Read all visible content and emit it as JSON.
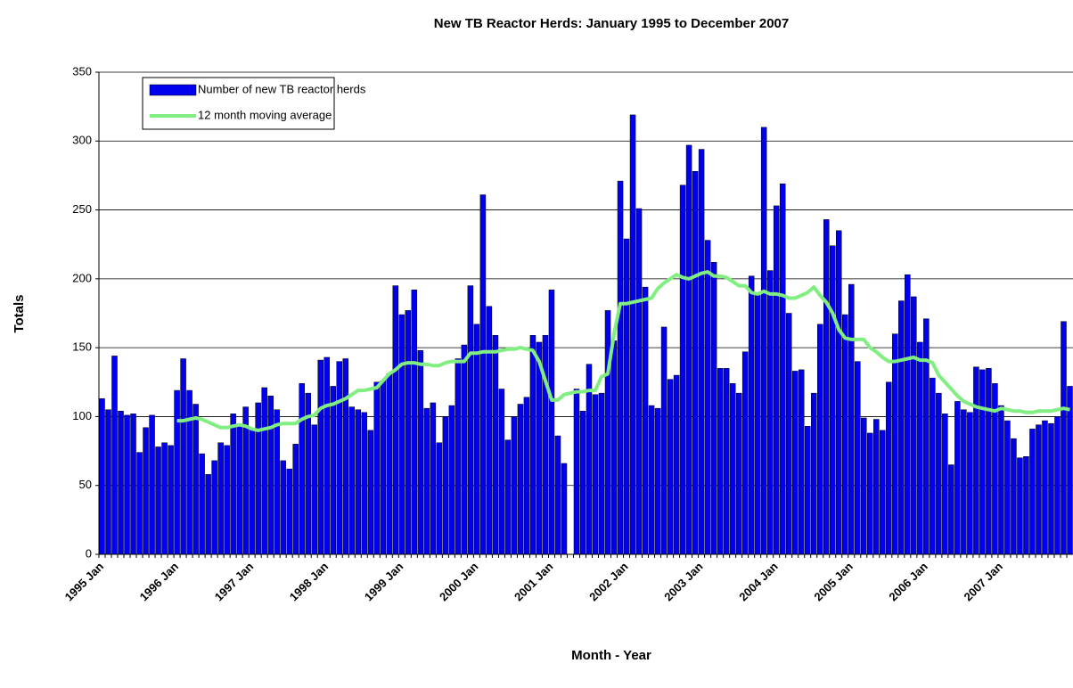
{
  "chart_data": {
    "type": "bar",
    "title": "New TB Reactor Herds: January 1995 to December 2007",
    "x_label": "Month - Year",
    "y_label": "Totals",
    "categories": [
      "1995 Jan",
      null,
      null,
      null,
      null,
      null,
      null,
      null,
      null,
      null,
      null,
      null,
      "1996 Jan",
      null,
      null,
      null,
      null,
      null,
      null,
      null,
      null,
      null,
      null,
      null,
      "1997 Jan",
      null,
      null,
      null,
      null,
      null,
      null,
      null,
      null,
      null,
      null,
      null,
      "1998 Jan",
      null,
      null,
      null,
      null,
      null,
      null,
      null,
      null,
      null,
      null,
      null,
      "1999 Jan",
      null,
      null,
      null,
      null,
      null,
      null,
      null,
      null,
      null,
      null,
      null,
      "2000 Jan",
      null,
      null,
      null,
      null,
      null,
      null,
      null,
      null,
      null,
      null,
      null,
      "2001 Jan",
      null,
      null,
      null,
      null,
      null,
      null,
      null,
      null,
      null,
      null,
      null,
      "2002 Jan",
      null,
      null,
      null,
      null,
      null,
      null,
      null,
      null,
      null,
      null,
      null,
      "2003 Jan",
      null,
      null,
      null,
      null,
      null,
      null,
      null,
      null,
      null,
      null,
      null,
      "2004 Jan",
      null,
      null,
      null,
      null,
      null,
      null,
      null,
      null,
      null,
      null,
      null,
      "2005 Jan",
      null,
      null,
      null,
      null,
      null,
      null,
      null,
      null,
      null,
      null,
      null,
      "2006 Jan",
      null,
      null,
      null,
      null,
      null,
      null,
      null,
      null,
      null,
      null,
      null,
      "2007 Jan",
      null,
      null,
      null,
      null,
      null,
      null,
      null,
      null,
      null,
      null,
      null
    ],
    "series": [
      {
        "name": "Number of new TB reactor herds",
        "type": "bar",
        "color": "#0000ee",
        "values": [
          113,
          105,
          144,
          104,
          101,
          102,
          74,
          92,
          101,
          78,
          81,
          79,
          119,
          142,
          119,
          109,
          73,
          58,
          68,
          81,
          79,
          102,
          93,
          107,
          91,
          110,
          121,
          115,
          105,
          68,
          62,
          80,
          124,
          117,
          94,
          141,
          143,
          122,
          140,
          142,
          107,
          105,
          103,
          90,
          125,
          126,
          131,
          195,
          174,
          177,
          192,
          148,
          106,
          110,
          81,
          100,
          108,
          142,
          152,
          195,
          167,
          261,
          180,
          159,
          120,
          83,
          100,
          109,
          114,
          159,
          154,
          159,
          192,
          86,
          66,
          null,
          120,
          104,
          138,
          116,
          117,
          177,
          155,
          271,
          229,
          319,
          251,
          194,
          108,
          106,
          165,
          127,
          130,
          268,
          297,
          278,
          294,
          228,
          212,
          135,
          135,
          124,
          117,
          147,
          202,
          188,
          310,
          206,
          253,
          269,
          175,
          133,
          134,
          93,
          117,
          167,
          243,
          224,
          235,
          174,
          196,
          140,
          99,
          88,
          98,
          90,
          125,
          160,
          184,
          203,
          187,
          154,
          171,
          128,
          117,
          102,
          65,
          111,
          105,
          103,
          136,
          134,
          135,
          124,
          108,
          97,
          84,
          70,
          71,
          91,
          94,
          97,
          95,
          100,
          169,
          122
        ]
      },
      {
        "name": "12 month moving average",
        "type": "line",
        "color": "#80ee80",
        "values": [
          null,
          null,
          null,
          null,
          null,
          null,
          null,
          null,
          null,
          null,
          null,
          null,
          97,
          97,
          98,
          99,
          98,
          96,
          94,
          92,
          92,
          93,
          94,
          93,
          91,
          90,
          91,
          92,
          94,
          95,
          95,
          95,
          98,
          100,
          101,
          106,
          108,
          109,
          111,
          113,
          116,
          119,
          119,
          120,
          121,
          126,
          131,
          134,
          138,
          139,
          139,
          138,
          138,
          137,
          137,
          139,
          140,
          140,
          140,
          146,
          146,
          147,
          147,
          147,
          148,
          149,
          149,
          150,
          149,
          148,
          140,
          126,
          112,
          112,
          116,
          117,
          118,
          118,
          119,
          119,
          129,
          131,
          160,
          182,
          182,
          183,
          184,
          185,
          186,
          193,
          197,
          200,
          203,
          201,
          200,
          202,
          204,
          205,
          202,
          202,
          201,
          198,
          195,
          195,
          190,
          189,
          191,
          189,
          189,
          188,
          186,
          186,
          188,
          190,
          194,
          188,
          183,
          175,
          163,
          157,
          156,
          156,
          156,
          150,
          147,
          143,
          140,
          140,
          141,
          142,
          143,
          141,
          141,
          139,
          130,
          125,
          120,
          115,
          111,
          109,
          107,
          106,
          105,
          104,
          106,
          105,
          104,
          104,
          103,
          103,
          104,
          104,
          104,
          105,
          106,
          105
        ]
      }
    ],
    "ylim": [
      0,
      350
    ],
    "yticks": [
      0,
      50,
      100,
      150,
      200,
      250,
      300,
      350
    ],
    "grid": true,
    "legend": "top-left"
  }
}
